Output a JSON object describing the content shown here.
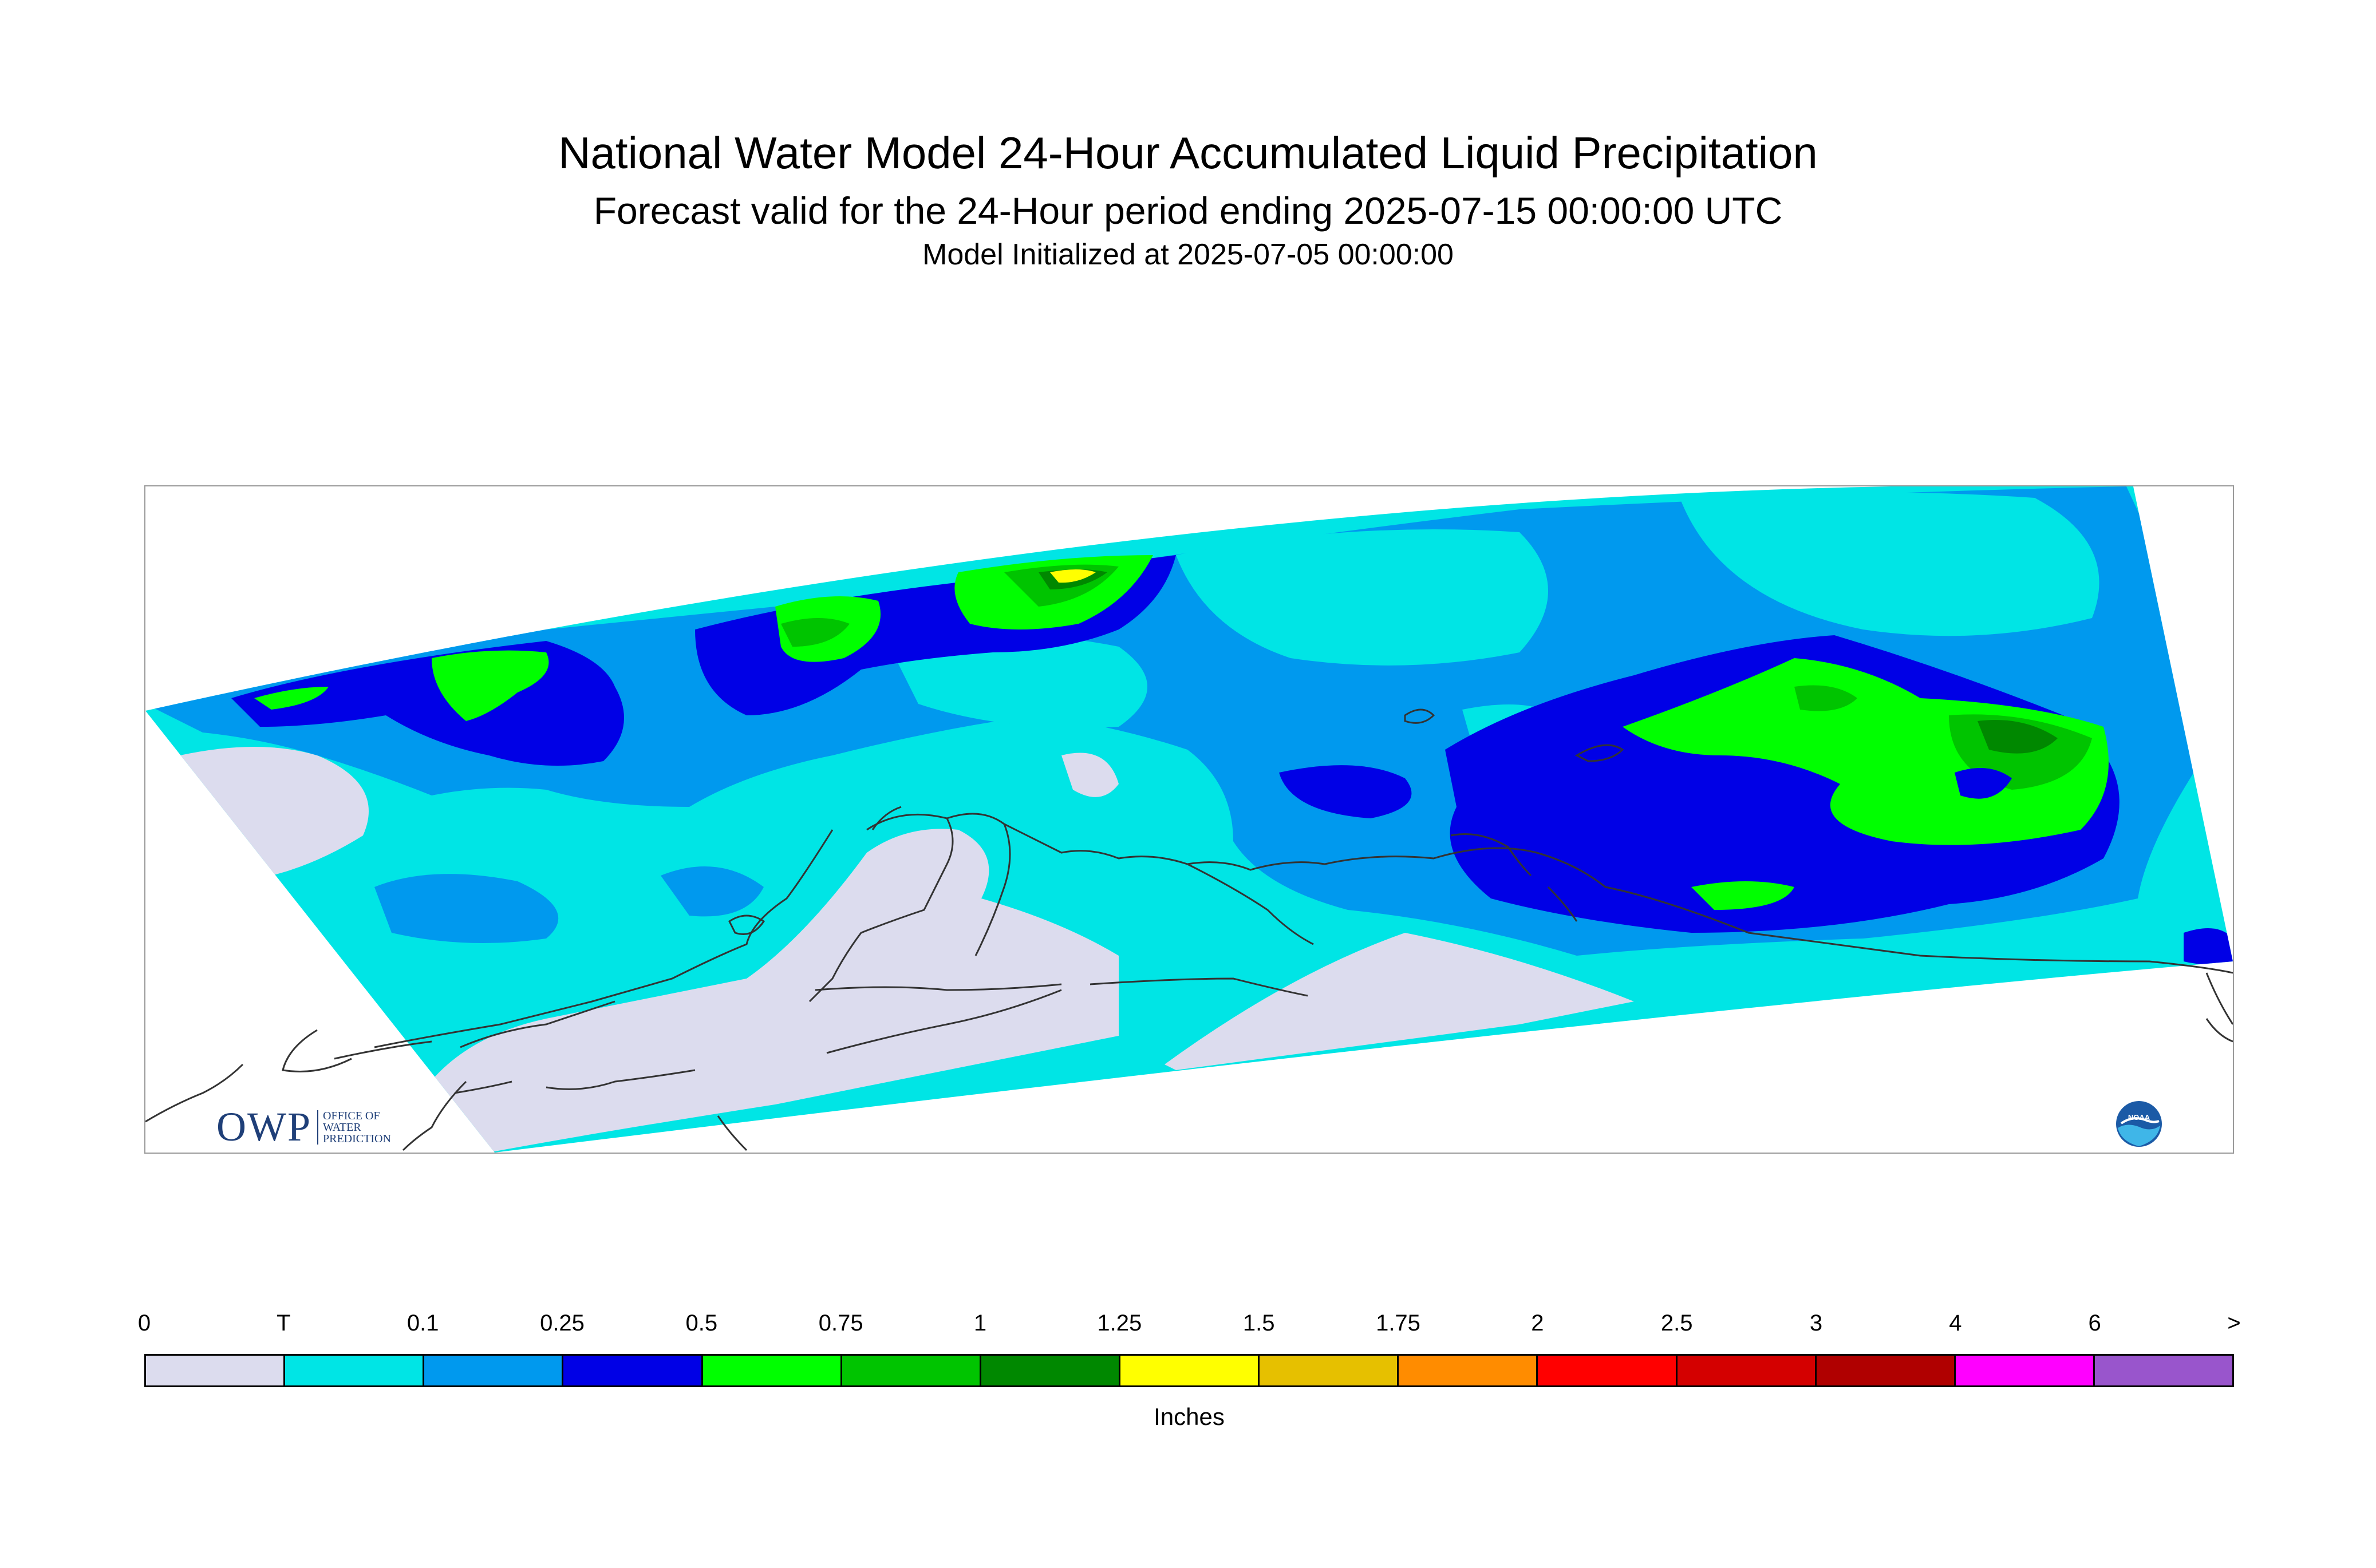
{
  "header": {
    "title": "National Water Model 24-Hour Accumulated Liquid Precipitation",
    "subtitle": "Forecast valid for the 24-Hour period ending 2025-07-15 00:00:00 UTC",
    "init_line": "Model Initialized at 2025-07-05 00:00:00"
  },
  "logos": {
    "owp_mark": "OWP",
    "owp_sub_1": "OFFICE OF",
    "owp_sub_2": "WATER",
    "owp_sub_3": "PREDICTION",
    "noaa_text": "NOAA"
  },
  "legend": {
    "units": "Inches",
    "tick_labels": [
      "0",
      "T",
      "0.1",
      "0.25",
      "0.5",
      "0.75",
      "1",
      "1.25",
      "1.5",
      "1.75",
      "2",
      "2.5",
      "3",
      "4",
      "6",
      ">"
    ],
    "colors": [
      "#dcdcee",
      "#00e5e5",
      "#0099ee",
      "#0000e6",
      "#00ff00",
      "#00c400",
      "#008800",
      "#ffff00",
      "#e6c000",
      "#ff8c00",
      "#ff0000",
      "#d40000",
      "#b00000",
      "#ff00ff",
      "#9955cc"
    ]
  },
  "colors": {
    "no_data": "#ffffff",
    "coastline": "#333333",
    "frame": "#9a9a9a"
  }
}
